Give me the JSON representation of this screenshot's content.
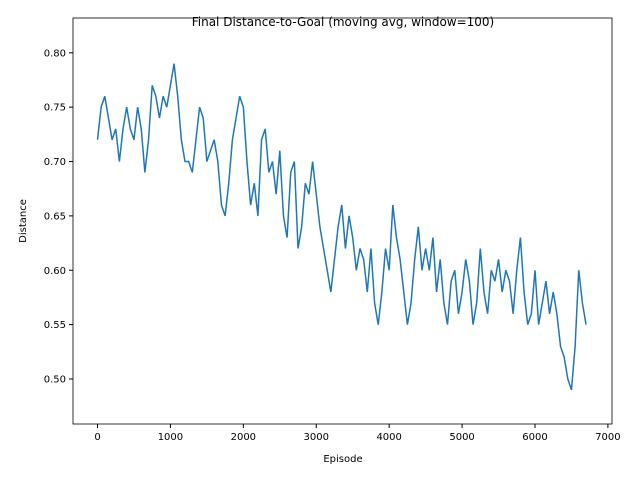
{
  "chart_data": {
    "type": "line",
    "title": "Final Distance-to-Goal (moving avg, window=100)",
    "x_label": "Episode",
    "y_label": "Distance",
    "x": [
      0,
      50,
      100,
      150,
      200,
      250,
      300,
      350,
      400,
      450,
      500,
      550,
      600,
      650,
      700,
      750,
      800,
      850,
      900,
      950,
      1000,
      1050,
      1100,
      1150,
      1200,
      1250,
      1300,
      1350,
      1400,
      1450,
      1500,
      1550,
      1600,
      1650,
      1700,
      1750,
      1800,
      1850,
      1900,
      1950,
      2000,
      2050,
      2100,
      2150,
      2200,
      2250,
      2300,
      2350,
      2400,
      2450,
      2500,
      2550,
      2600,
      2650,
      2700,
      2750,
      2800,
      2850,
      2900,
      2950,
      3000,
      3050,
      3100,
      3150,
      3200,
      3250,
      3300,
      3350,
      3400,
      3450,
      3500,
      3550,
      3600,
      3650,
      3700,
      3750,
      3800,
      3850,
      3900,
      3950,
      4000,
      4050,
      4100,
      4150,
      4200,
      4250,
      4300,
      4350,
      4400,
      4450,
      4500,
      4550,
      4600,
      4650,
      4700,
      4750,
      4800,
      4850,
      4900,
      4950,
      5000,
      5050,
      5100,
      5150,
      5200,
      5250,
      5300,
      5350,
      5400,
      5450,
      5500,
      5550,
      5600,
      5650,
      5700,
      5750,
      5800,
      5850,
      5900,
      5950,
      6000,
      6050,
      6100,
      6150,
      6200,
      6250,
      6300,
      6350,
      6400,
      6450,
      6500,
      6550,
      6600,
      6650,
      6700
    ],
    "series": [
      {
        "name": "Distance",
        "color": "#1f77b4",
        "values": [
          0.72,
          0.75,
          0.76,
          0.74,
          0.72,
          0.73,
          0.7,
          0.73,
          0.75,
          0.73,
          0.72,
          0.75,
          0.73,
          0.69,
          0.72,
          0.77,
          0.76,
          0.74,
          0.76,
          0.75,
          0.77,
          0.79,
          0.76,
          0.72,
          0.7,
          0.7,
          0.69,
          0.72,
          0.75,
          0.74,
          0.7,
          0.71,
          0.72,
          0.7,
          0.66,
          0.65,
          0.68,
          0.72,
          0.74,
          0.76,
          0.75,
          0.7,
          0.66,
          0.68,
          0.65,
          0.72,
          0.73,
          0.69,
          0.7,
          0.67,
          0.71,
          0.65,
          0.63,
          0.69,
          0.7,
          0.62,
          0.64,
          0.68,
          0.67,
          0.7,
          0.67,
          0.64,
          0.62,
          0.6,
          0.58,
          0.61,
          0.64,
          0.66,
          0.62,
          0.65,
          0.63,
          0.6,
          0.62,
          0.61,
          0.58,
          0.62,
          0.57,
          0.55,
          0.58,
          0.62,
          0.6,
          0.66,
          0.63,
          0.61,
          0.58,
          0.55,
          0.57,
          0.61,
          0.64,
          0.6,
          0.62,
          0.6,
          0.63,
          0.58,
          0.61,
          0.57,
          0.55,
          0.59,
          0.6,
          0.56,
          0.58,
          0.61,
          0.59,
          0.55,
          0.57,
          0.62,
          0.58,
          0.56,
          0.6,
          0.59,
          0.61,
          0.58,
          0.6,
          0.59,
          0.56,
          0.6,
          0.63,
          0.58,
          0.55,
          0.56,
          0.6,
          0.55,
          0.57,
          0.59,
          0.56,
          0.58,
          0.56,
          0.53,
          0.52,
          0.5,
          0.49,
          0.53,
          0.6,
          0.57,
          0.55
        ]
      }
    ],
    "xlim": [
      -336,
      7056
    ],
    "ylim": [
      0.4586,
      0.832
    ],
    "xticks": [
      0,
      1000,
      2000,
      3000,
      4000,
      5000,
      6000,
      7000
    ],
    "yticks": [
      {
        "value": 0.5,
        "label": "0.50"
      },
      {
        "value": 0.55,
        "label": "0.55"
      },
      {
        "value": 0.6,
        "label": "0.60"
      },
      {
        "value": 0.65,
        "label": "0.65"
      },
      {
        "value": 0.7,
        "label": "0.70"
      },
      {
        "value": 0.75,
        "label": "0.75"
      },
      {
        "value": 0.8,
        "label": "0.80"
      }
    ],
    "grid": false
  }
}
